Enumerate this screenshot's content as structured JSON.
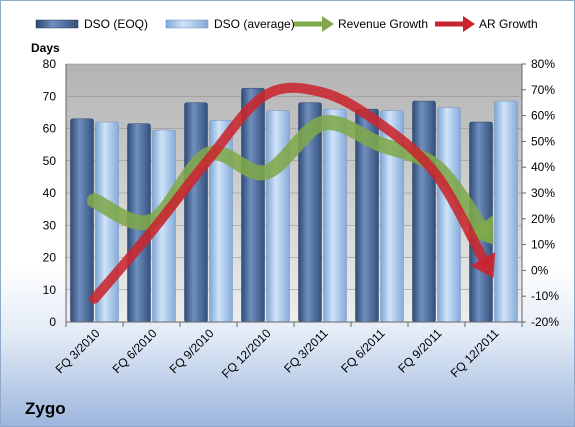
{
  "company": "Zygo",
  "chart_data": {
    "type": "bar",
    "categories": [
      "FQ 3/2010",
      "FQ 6/2010",
      "FQ 9/2010",
      "FQ 12/2010",
      "FQ 3/2011",
      "FQ 6/2011",
      "FQ 9/2011",
      "FQ 12/2011"
    ],
    "ylabel": "Days",
    "ylim": [
      0,
      80
    ],
    "yticks": [
      "0",
      "10",
      "20",
      "30",
      "40",
      "50",
      "60",
      "70",
      "80"
    ],
    "y2lim": [
      -20,
      80
    ],
    "y2ticks": [
      "-20%",
      "-10%",
      "0%",
      "10%",
      "20%",
      "30%",
      "40%",
      "50%",
      "60%",
      "70%",
      "80%"
    ],
    "legend_position": "top",
    "series": [
      {
        "name": "DSO (EOQ)",
        "kind": "bar",
        "color": "#4f6e9c",
        "values": [
          63,
          61.5,
          68,
          72.5,
          68,
          66,
          68.5,
          62
        ]
      },
      {
        "name": "DSO (average)",
        "kind": "bar",
        "color": "#a7c7eb",
        "values": [
          62,
          59.5,
          62.5,
          65.5,
          66,
          65.5,
          66.5,
          68.5
        ]
      },
      {
        "name": "Revenue Growth",
        "kind": "arrow",
        "axis": "right",
        "color": "#80a94b",
        "values": [
          27,
          19,
          45,
          38,
          57,
          49,
          40,
          10
        ]
      },
      {
        "name": "AR Growth",
        "kind": "arrow",
        "axis": "right",
        "color": "#c9252e",
        "values": [
          -11,
          15,
          43,
          68,
          69,
          57,
          37,
          -3
        ]
      }
    ]
  }
}
